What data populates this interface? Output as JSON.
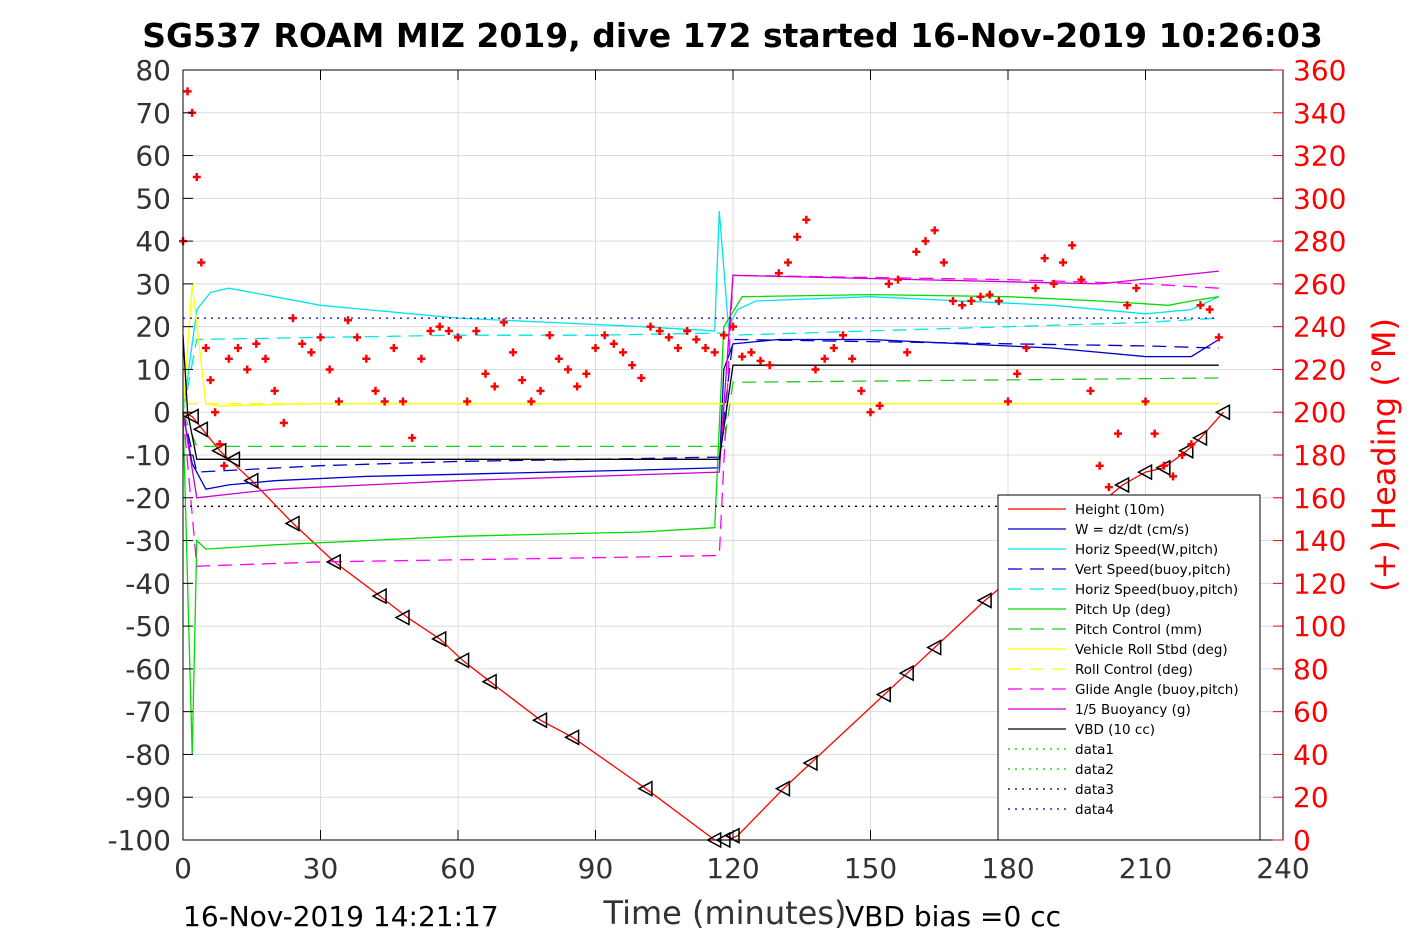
{
  "chart_data": {
    "type": "line",
    "title": "SG537 ROAM MIZ 2019, dive 172 started 16-Nov-2019 10:26:03",
    "xlabel": "Time (minutes)",
    "ylabel": "",
    "y2label": "(+) Heading (°M)",
    "xlim": [
      0,
      240
    ],
    "ylim": [
      -100,
      80
    ],
    "y2lim": [
      0,
      360
    ],
    "xticks": [
      0,
      30,
      60,
      90,
      120,
      150,
      180,
      210,
      240
    ],
    "yticks": [
      80,
      70,
      60,
      50,
      40,
      30,
      20,
      10,
      0,
      -10,
      -20,
      -30,
      -40,
      -50,
      -60,
      -70,
      -80,
      -90,
      -100
    ],
    "y2ticks": [
      360,
      340,
      320,
      300,
      280,
      260,
      240,
      220,
      200,
      180,
      160,
      140,
      120,
      100,
      80,
      60,
      40,
      20,
      0
    ],
    "grid": true,
    "legend_position": "bottom-right",
    "colors": {
      "height": "#ff0000",
      "w": "#0000cc",
      "horiz": "#00e5e5",
      "vert_b": "#0000cc",
      "horiz_b": "#00e5e5",
      "pitch": "#00dd00",
      "pitch_ctl": "#22cc22",
      "roll": "#ffff00",
      "roll_ctl": "#ffff00",
      "glide": "#ff00ff",
      "buoy": "#cc00cc",
      "vbd": "#000000",
      "data": "#00cc00",
      "data4": "#0000aa",
      "heading": "#ff0000"
    },
    "series": [
      {
        "name": "Height (10m)",
        "style": "solid",
        "color": "#ff0000",
        "x": [
          0,
          2,
          8,
          15,
          24,
          33,
          43,
          49,
          56,
          61,
          67,
          78,
          85,
          101,
          116,
          119,
          121,
          131,
          137,
          153,
          158,
          164,
          175,
          205,
          210,
          214,
          219,
          222,
          227
        ],
        "y": [
          0,
          -1,
          -9,
          -16,
          -26,
          -35,
          -43,
          -48,
          -53,
          -58,
          -63,
          -72,
          -76,
          -88,
          -100,
          -100,
          -99,
          -88,
          -82,
          -66,
          -61,
          -55,
          -44,
          -17,
          -14,
          -13,
          -9,
          -6,
          0
        ]
      },
      {
        "name": "W = dz/dt (cm/s)",
        "style": "solid",
        "color": "#0000cc",
        "x": [
          0,
          2,
          5,
          10,
          20,
          40,
          60,
          80,
          100,
          117,
          118,
          120,
          130,
          150,
          170,
          190,
          210,
          220,
          226
        ],
        "y": [
          0,
          -12,
          -18,
          -17,
          -16,
          -15,
          -14.5,
          -14,
          -13.5,
          -13,
          10,
          16,
          17,
          17,
          16,
          15,
          13,
          13,
          17
        ]
      },
      {
        "name": "Horiz Speed(W,pitch)",
        "style": "solid",
        "color": "#00e5e5",
        "x": [
          0,
          3,
          6,
          10,
          20,
          30,
          40,
          60,
          80,
          100,
          116,
          117,
          119,
          121,
          125,
          150,
          170,
          190,
          210,
          220,
          226
        ],
        "y": [
          0,
          24,
          28,
          29,
          27,
          25,
          24,
          22,
          21,
          20,
          19,
          47,
          20,
          24,
          26,
          27,
          26,
          25,
          23,
          24,
          27
        ]
      },
      {
        "name": "Vert Speed(buoy,pitch)",
        "style": "dashed",
        "color": "#0000cc",
        "x": [
          0,
          3,
          30,
          60,
          90,
          117,
          120,
          150,
          180,
          210,
          226
        ],
        "y": [
          0,
          -14,
          -12.5,
          -11.5,
          -11,
          -10.5,
          17,
          16.5,
          16,
          15.5,
          15
        ]
      },
      {
        "name": "Horiz Speed(buoy,pitch)",
        "style": "dashed",
        "color": "#00e5e5",
        "x": [
          0,
          3,
          30,
          60,
          90,
          117,
          120,
          150,
          180,
          210,
          226
        ],
        "y": [
          0,
          17,
          17.5,
          18,
          18,
          18.5,
          18,
          19,
          20,
          21,
          22
        ]
      },
      {
        "name": "Pitch Up (deg)",
        "style": "solid",
        "color": "#00dd00",
        "x": [
          0,
          2,
          3,
          5,
          20,
          40,
          60,
          80,
          100,
          116,
          118,
          122,
          150,
          180,
          200,
          215,
          220,
          226
        ],
        "y": [
          0,
          -80,
          -30,
          -32,
          -31,
          -30,
          -29,
          -28.5,
          -28,
          -27,
          20,
          27,
          27.5,
          27,
          26,
          25,
          26,
          27
        ]
      },
      {
        "name": "Pitch Control (mm)",
        "style": "dashed",
        "color": "#22cc22",
        "x": [
          0,
          3,
          118,
          120,
          226
        ],
        "y": [
          0,
          -8,
          -8,
          7,
          8
        ]
      },
      {
        "name": "Vehicle Roll Stbd (deg)",
        "style": "solid",
        "color": "#ffff00",
        "x": [
          0,
          2,
          5,
          8,
          30,
          60,
          90,
          117,
          119,
          121,
          150,
          180,
          200,
          226
        ],
        "y": [
          0,
          30,
          2,
          1.5,
          2,
          2,
          2,
          2,
          2,
          2,
          2,
          2,
          2,
          2
        ]
      },
      {
        "name": "Roll Control (deg)",
        "style": "dashed",
        "color": "#ffff00",
        "x": [
          0,
          226
        ],
        "y": [
          2,
          2
        ]
      },
      {
        "name": "Glide Angle (buoy,pitch)",
        "style": "dashed",
        "color": "#ff00ff",
        "x": [
          0,
          3,
          30,
          60,
          90,
          117,
          120,
          150,
          180,
          210,
          226
        ],
        "y": [
          0,
          -36,
          -35,
          -34.5,
          -34,
          -33.5,
          32,
          31.5,
          31,
          30,
          29
        ]
      },
      {
        "name": "1/5 Buoyancy (g)",
        "style": "solid",
        "color": "#cc00cc",
        "x": [
          0,
          3,
          20,
          60,
          117,
          120,
          160,
          200,
          226
        ],
        "y": [
          0,
          -20,
          -18,
          -16,
          -14,
          32,
          31,
          30,
          33
        ]
      },
      {
        "name": "VBD (10 cc)",
        "style": "solid",
        "color": "#000000",
        "x": [
          0,
          1,
          3,
          117,
          120,
          226
        ],
        "y": [
          18,
          0,
          -11,
          -11,
          11,
          11
        ]
      },
      {
        "name": "data1",
        "style": "dotted",
        "color": "#00cc00",
        "x": [],
        "y": []
      },
      {
        "name": "data2",
        "style": "dotted",
        "color": "#00cc00",
        "x": [],
        "y": []
      },
      {
        "name": "data3",
        "style": "dotted",
        "color": "#000000",
        "x": [
          0,
          226
        ],
        "y": [
          -22,
          -22
        ]
      },
      {
        "name": "data4",
        "style": "dotted",
        "color": "#0000aa",
        "x": [
          0,
          226
        ],
        "y": [
          22,
          22
        ]
      }
    ],
    "markers": {
      "name": "depth-markers",
      "x": [
        2,
        4,
        8,
        11,
        15,
        24,
        33,
        43,
        48,
        56,
        61,
        67,
        78,
        85,
        101,
        116,
        118,
        120,
        131,
        137,
        153,
        158,
        164,
        175,
        205,
        210,
        214,
        219,
        222,
        227
      ],
      "y": [
        -1,
        -4,
        -9,
        -11,
        -16,
        -26,
        -35,
        -43,
        -48,
        -53,
        -58,
        -63,
        -72,
        -76,
        -88,
        -100,
        -100,
        -99,
        -88,
        -82,
        -66,
        -61,
        -55,
        -44,
        -17,
        -14,
        -13,
        -9,
        -6,
        0
      ]
    },
    "heading": {
      "name": "Heading",
      "axis": "right",
      "x": [
        0,
        1,
        2,
        3,
        4,
        5,
        6,
        7,
        8,
        9,
        10,
        12,
        14,
        16,
        18,
        20,
        22,
        24,
        26,
        28,
        30,
        32,
        34,
        36,
        38,
        40,
        42,
        44,
        46,
        48,
        50,
        52,
        54,
        56,
        58,
        60,
        62,
        64,
        66,
        68,
        70,
        72,
        74,
        76,
        78,
        80,
        82,
        84,
        86,
        88,
        90,
        92,
        94,
        96,
        98,
        100,
        102,
        104,
        106,
        108,
        110,
        112,
        114,
        116,
        118,
        120,
        122,
        124,
        126,
        128,
        130,
        132,
        134,
        136,
        138,
        140,
        142,
        144,
        146,
        148,
        150,
        152,
        154,
        156,
        158,
        160,
        162,
        164,
        166,
        168,
        170,
        172,
        174,
        176,
        178,
        180,
        182,
        184,
        186,
        188,
        190,
        192,
        194,
        196,
        198,
        200,
        202,
        204,
        206,
        208,
        210,
        212,
        214,
        216,
        218,
        220,
        222,
        224,
        226
      ],
      "y": [
        280,
        350,
        340,
        310,
        270,
        230,
        215,
        200,
        185,
        175,
        225,
        230,
        220,
        232,
        225,
        210,
        195,
        244,
        232,
        228,
        235,
        220,
        205,
        243,
        235,
        225,
        210,
        205,
        230,
        205,
        188,
        225,
        238,
        240,
        238,
        235,
        205,
        238,
        218,
        212,
        242,
        228,
        215,
        205,
        210,
        236,
        225,
        220,
        212,
        218,
        230,
        236,
        232,
        228,
        222,
        216,
        240,
        238,
        235,
        230,
        238,
        234,
        230,
        228,
        236,
        240,
        226,
        228,
        224,
        222,
        265,
        270,
        282,
        290,
        220,
        225,
        230,
        236,
        225,
        210,
        200,
        203,
        260,
        262,
        228,
        275,
        280,
        285,
        270,
        252,
        250,
        252,
        254,
        255,
        252,
        205,
        218,
        230,
        258,
        272,
        260,
        270,
        278,
        262,
        210,
        175,
        165,
        190,
        250,
        258,
        205,
        190,
        175,
        170,
        180,
        185,
        250,
        248,
        235
      ]
    }
  },
  "footer": {
    "timestamp": "16-Nov-2019 14:21:17",
    "vbd_bias": "VBD bias =0 cc"
  }
}
